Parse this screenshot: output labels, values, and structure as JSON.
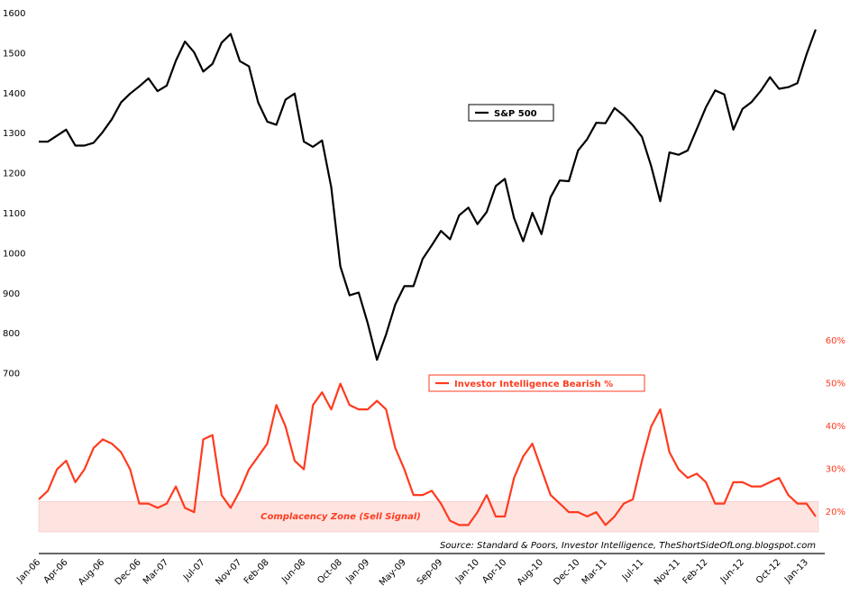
{
  "chart_data": {
    "type": "line",
    "categories": [
      "Jan-06",
      null,
      null,
      "Apr-06",
      null,
      null,
      null,
      "Aug-06",
      null,
      null,
      null,
      "Dec-06",
      null,
      null,
      "Mar-07",
      null,
      null,
      null,
      "Jul-07",
      null,
      null,
      null,
      "Nov-07",
      null,
      null,
      "Feb-08",
      null,
      null,
      null,
      "Jun-08",
      null,
      null,
      null,
      "Oct-08",
      null,
      null,
      "Jan-09",
      null,
      null,
      null,
      "May-09",
      null,
      null,
      null,
      "Sep-09",
      null,
      null,
      null,
      "Jan-10",
      null,
      null,
      "Apr-10",
      null,
      null,
      null,
      "Aug-10",
      null,
      null,
      null,
      "Dec-10",
      null,
      null,
      "Mar-11",
      null,
      null,
      null,
      "Jul-11",
      null,
      null,
      null,
      "Nov-11",
      null,
      null,
      "Feb-12",
      null,
      null,
      null,
      "Jun-12",
      null,
      null,
      null,
      "Oct-12",
      null,
      null,
      "Jan-13",
      null
    ],
    "series": [
      {
        "name": "S&P 500",
        "color": "#000000",
        "values": [
          1280,
          1280,
          1295,
          1310,
          1270,
          1270,
          1277,
          1304,
          1336,
          1378,
          1400,
          1418,
          1438,
          1406,
          1420,
          1482,
          1530,
          1503,
          1455,
          1474,
          1527,
          1549,
          1481,
          1468,
          1378,
          1330,
          1322,
          1385,
          1400,
          1280,
          1267,
          1283,
          1166,
          968,
          896,
          903,
          826,
          735,
          798,
          873,
          919,
          919,
          987,
          1021,
          1057,
          1036,
          1096,
          1115,
          1074,
          1104,
          1169,
          1187,
          1089,
          1031,
          1102,
          1049,
          1141,
          1183,
          1181,
          1258,
          1286,
          1327,
          1326,
          1364,
          1345,
          1321,
          1292,
          1219,
          1131,
          1253,
          1247,
          1258,
          1312,
          1366,
          1408,
          1398,
          1310,
          1362,
          1379,
          1407,
          1441,
          1412,
          1416,
          1426,
          1498,
          1560
        ]
      },
      {
        "name": "Investor Intelligence Bearish %",
        "color": "#ff3b1f",
        "axis": "y2",
        "values": [
          23,
          25,
          30,
          32,
          27,
          30,
          35,
          37,
          36,
          34,
          30,
          22,
          22,
          21,
          22,
          26,
          21,
          20,
          37,
          38,
          24,
          21,
          25,
          30,
          33,
          36,
          45,
          40,
          32,
          30,
          45,
          48,
          44,
          50,
          45,
          44,
          44,
          46,
          44,
          35,
          30,
          24,
          24,
          25,
          22,
          18,
          17,
          17,
          20,
          24,
          19,
          19,
          28,
          33,
          36,
          30,
          24,
          22,
          20,
          20,
          19,
          20,
          17,
          19,
          22,
          23,
          32,
          40,
          44,
          34,
          30,
          28,
          29,
          27,
          22,
          22,
          27,
          27,
          26,
          26,
          27,
          28,
          24,
          22,
          22,
          19
        ]
      }
    ],
    "ylim": [
      305,
      1600
    ],
    "yticks": [
      700,
      800,
      900,
      1000,
      1100,
      1200,
      1300,
      1400,
      1500,
      1600
    ],
    "y2lim": [
      15.4,
      136.4
    ],
    "y2ticks": [
      {
        "value": 20,
        "label": "20%"
      },
      {
        "value": 30,
        "label": "30%"
      },
      {
        "value": 40,
        "label": "40%"
      },
      {
        "value": 50,
        "label": "50%"
      },
      {
        "value": 60,
        "label": "60%"
      }
    ],
    "zone": {
      "label": "Complacency Zone (Sell Signal)",
      "top": 22.5
    },
    "source": "Source: Standard & Poors, Investor Intelligence, TheShortSideOfLong.blogspot.com"
  }
}
